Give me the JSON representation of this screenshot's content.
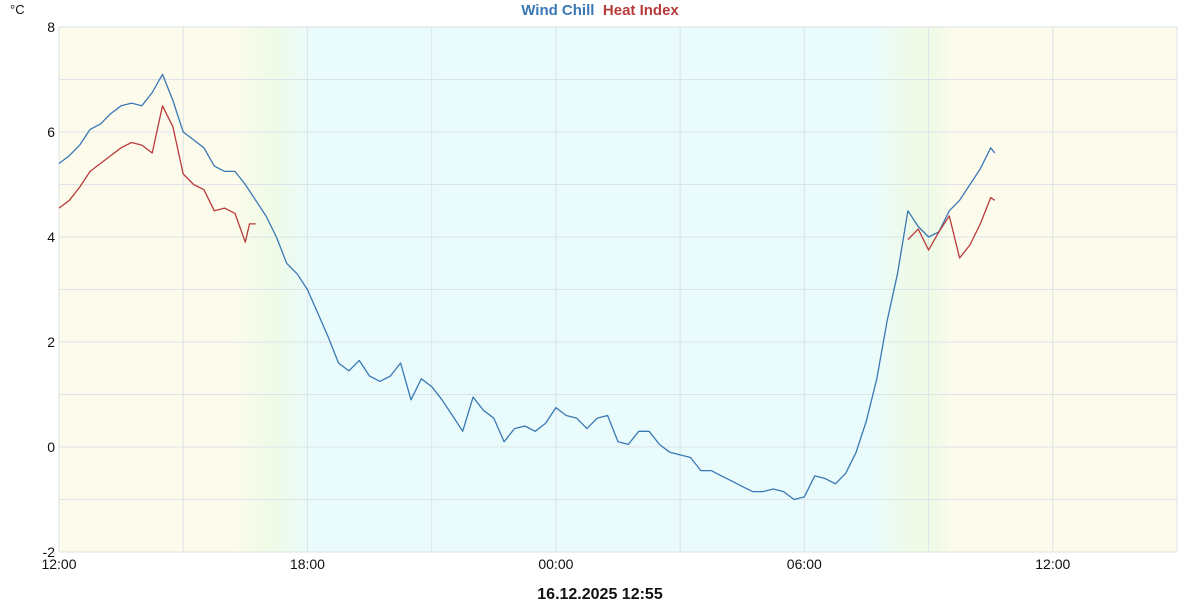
{
  "colors": {
    "wind_chill": "#3a78b5",
    "heat_index": "#b83b3b",
    "day_bg": "#fdfbec",
    "night_bg": "#eafbfb",
    "twilight": "#effbe6",
    "grid": "#dde3e8"
  },
  "chart_data": {
    "type": "line",
    "y_unit": "°C",
    "ylim": [
      -2,
      8
    ],
    "y_ticks": [
      "8",
      "6",
      "4",
      "2",
      "0",
      "-2"
    ],
    "x_ticks": [
      "12:00",
      "18:00",
      "00:00",
      "06:00",
      "12:00"
    ],
    "title_parts": [
      "Wind Chill",
      "Heat Index"
    ],
    "footer": "16.12.2025 12:55",
    "grid": true,
    "series": [
      {
        "name": "Wind Chill",
        "points": [
          [
            0.0,
            5.4
          ],
          [
            0.5,
            5.55
          ],
          [
            1.0,
            5.75
          ],
          [
            1.5,
            6.05
          ],
          [
            2.0,
            6.15
          ],
          [
            2.5,
            6.35
          ],
          [
            3.0,
            6.5
          ],
          [
            3.5,
            6.55
          ],
          [
            4.0,
            6.5
          ],
          [
            4.5,
            6.75
          ],
          [
            5.0,
            7.1
          ],
          [
            5.5,
            6.6
          ],
          [
            6.0,
            6.0
          ],
          [
            6.5,
            5.85
          ],
          [
            7.0,
            5.7
          ],
          [
            7.5,
            5.35
          ],
          [
            8.0,
            5.25
          ],
          [
            8.5,
            5.25
          ],
          [
            9.0,
            5.0
          ],
          [
            9.5,
            4.7
          ],
          [
            10.0,
            4.4
          ],
          [
            10.5,
            4.0
          ],
          [
            11.0,
            3.5
          ],
          [
            11.5,
            3.3
          ],
          [
            12.0,
            3.0
          ],
          [
            12.5,
            2.55
          ],
          [
            13.0,
            2.1
          ],
          [
            13.5,
            1.6
          ],
          [
            14.0,
            1.45
          ],
          [
            14.5,
            1.65
          ],
          [
            15.0,
            1.35
          ],
          [
            15.5,
            1.25
          ],
          [
            16.0,
            1.35
          ],
          [
            16.5,
            1.6
          ],
          [
            17.0,
            0.9
          ],
          [
            17.5,
            1.3
          ],
          [
            18.0,
            1.15
          ],
          [
            18.5,
            0.9
          ],
          [
            19.0,
            0.6
          ],
          [
            19.5,
            0.3
          ],
          [
            20.0,
            0.95
          ],
          [
            20.5,
            0.7
          ],
          [
            21.0,
            0.55
          ],
          [
            21.5,
            0.1
          ],
          [
            22.0,
            0.35
          ],
          [
            22.5,
            0.4
          ],
          [
            23.0,
            0.3
          ],
          [
            23.5,
            0.45
          ],
          [
            24.0,
            0.75
          ],
          [
            24.5,
            0.6
          ],
          [
            25.0,
            0.55
          ],
          [
            25.5,
            0.35
          ],
          [
            26.0,
            0.55
          ],
          [
            26.5,
            0.6
          ],
          [
            27.0,
            0.1
          ],
          [
            27.5,
            0.05
          ],
          [
            28.0,
            0.3
          ],
          [
            28.5,
            0.3
          ],
          [
            29.0,
            0.05
          ],
          [
            29.5,
            -0.1
          ],
          [
            30.0,
            -0.15
          ],
          [
            30.5,
            -0.2
          ],
          [
            31.0,
            -0.45
          ],
          [
            31.5,
            -0.45
          ],
          [
            32.0,
            -0.55
          ],
          [
            32.5,
            -0.65
          ],
          [
            33.0,
            -0.75
          ],
          [
            33.5,
            -0.85
          ],
          [
            34.0,
            -0.85
          ],
          [
            34.5,
            -0.8
          ],
          [
            35.0,
            -0.85
          ],
          [
            35.5,
            -1.0
          ],
          [
            36.0,
            -0.95
          ],
          [
            36.5,
            -0.55
          ],
          [
            37.0,
            -0.6
          ],
          [
            37.5,
            -0.7
          ],
          [
            38.0,
            -0.5
          ],
          [
            38.5,
            -0.1
          ],
          [
            39.0,
            0.5
          ],
          [
            39.5,
            1.3
          ],
          [
            40.0,
            2.4
          ],
          [
            40.5,
            3.3
          ],
          [
            41.0,
            4.5
          ],
          [
            41.5,
            4.2
          ],
          [
            42.0,
            4.0
          ],
          [
            42.5,
            4.1
          ],
          [
            43.0,
            4.5
          ],
          [
            43.5,
            4.7
          ],
          [
            44.0,
            5.0
          ],
          [
            44.5,
            5.3
          ],
          [
            45.0,
            5.7
          ],
          [
            45.2,
            5.6
          ]
        ]
      },
      {
        "name": "Heat Index",
        "points": [
          [
            0.0,
            4.55
          ],
          [
            0.5,
            4.7
          ],
          [
            1.0,
            4.95
          ],
          [
            1.5,
            5.25
          ],
          [
            2.0,
            5.4
          ],
          [
            2.5,
            5.55
          ],
          [
            3.0,
            5.7
          ],
          [
            3.5,
            5.8
          ],
          [
            4.0,
            5.75
          ],
          [
            4.5,
            5.6
          ],
          [
            5.0,
            6.5
          ],
          [
            5.5,
            6.1
          ],
          [
            6.0,
            5.2
          ],
          [
            6.5,
            5.0
          ],
          [
            7.0,
            4.9
          ],
          [
            7.5,
            4.5
          ],
          [
            8.0,
            4.55
          ],
          [
            8.5,
            4.45
          ],
          [
            9.0,
            3.9
          ],
          [
            9.2,
            4.25
          ],
          [
            9.5,
            4.25
          ],
          [
            41.0,
            3.95
          ],
          [
            41.5,
            4.15
          ],
          [
            42.0,
            3.75
          ],
          [
            42.5,
            4.1
          ],
          [
            43.0,
            4.4
          ],
          [
            43.5,
            3.6
          ],
          [
            44.0,
            3.85
          ],
          [
            44.5,
            4.25
          ],
          [
            45.0,
            4.75
          ],
          [
            45.2,
            4.7
          ]
        ]
      }
    ]
  }
}
